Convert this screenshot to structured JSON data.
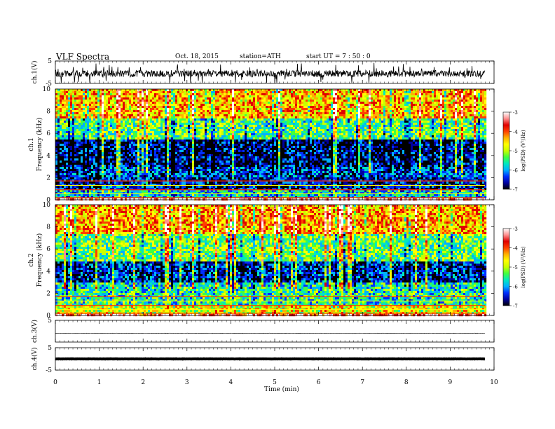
{
  "header": {
    "title": "VLF  Spectra",
    "date": "Oct. 18, 2015",
    "station": "station=ATH",
    "start": "start  UT  =   7 : 50 : 0"
  },
  "colorbar": {
    "ticks": [
      "-3",
      "-4",
      "-5",
      "-6",
      "-7"
    ],
    "label": "log(PSD) (V²/Hz)",
    "colors": [
      "#000000",
      "#0000a0",
      "#0030ff",
      "#00b0ff",
      "#00e8c0",
      "#40ff40",
      "#c8ff00",
      "#ffff00",
      "#ffb000",
      "#ff4000",
      "#e00000",
      "#ff9090",
      "#ffffff"
    ]
  },
  "chart_data": [
    {
      "type": "line",
      "name": "ch1-waveform",
      "ylabel": "ch.1(V)",
      "ylim": [
        -5,
        5
      ],
      "yticks": [
        "5",
        "-5"
      ],
      "xlim": [
        0,
        10
      ],
      "description_values": {
        "baseline": 0,
        "noise_amplitude": 1.5,
        "spike_amplitude": 5
      }
    },
    {
      "type": "heatmap",
      "name": "ch1-spectrogram",
      "side_label": "ch.1",
      "ylabel": "Frequency  (kHz)",
      "ylim": [
        0,
        10
      ],
      "yticks": [
        "0",
        "2",
        "4",
        "6",
        "8",
        "10"
      ],
      "xlim": [
        0,
        9.8
      ],
      "colorscale_range": [
        -7,
        -3
      ],
      "bands": [
        {
          "f": [
            0.0,
            0.3
          ],
          "log_psd": -3.3
        },
        {
          "f": [
            0.3,
            1.0
          ],
          "log_psd": -5.8
        },
        {
          "f": [
            1.0,
            2.2
          ],
          "log_psd": -6.6
        },
        {
          "f": [
            2.2,
            3.0
          ],
          "log_psd": -6.3
        },
        {
          "f": [
            3.0,
            5.5
          ],
          "log_psd": -6.7
        },
        {
          "f": [
            5.5,
            7.5
          ],
          "log_psd": -5.4
        },
        {
          "f": [
            7.5,
            10.0
          ],
          "log_psd": -4.4
        }
      ]
    },
    {
      "type": "heatmap",
      "name": "ch2-spectrogram",
      "side_label": "ch.2",
      "ylabel": "Frequency  (kHz)",
      "ylim": [
        0,
        10
      ],
      "yticks": [
        "0",
        "2",
        "4",
        "6",
        "8",
        "10"
      ],
      "xlim": [
        0,
        9.8
      ],
      "colorscale_range": [
        -7,
        -3
      ],
      "bands": [
        {
          "f": [
            0.0,
            0.3
          ],
          "log_psd": -3.5
        },
        {
          "f": [
            0.3,
            1.0
          ],
          "log_psd": -4.8
        },
        {
          "f": [
            1.0,
            3.0
          ],
          "log_psd": -5.6
        },
        {
          "f": [
            3.0,
            5.0
          ],
          "log_psd": -6.5
        },
        {
          "f": [
            5.0,
            7.5
          ],
          "log_psd": -5.3
        },
        {
          "f": [
            7.5,
            10.0
          ],
          "log_psd": -4.3
        }
      ]
    },
    {
      "type": "line",
      "name": "ch3-waveform",
      "ylabel": "ch.3(V)",
      "ylim": [
        -5,
        5
      ],
      "yticks": [
        "5"
      ],
      "xlim": [
        0,
        9.8
      ],
      "description_values": {
        "baseline": 0,
        "noise_amplitude": 0.1
      }
    },
    {
      "type": "line",
      "name": "ch4-waveform",
      "ylabel": "ch.4(V)",
      "ylim": [
        -5,
        5
      ],
      "yticks": [
        "5",
        "-5"
      ],
      "xlim": [
        0,
        9.8
      ],
      "description_values": {
        "baseline": 0,
        "noise_amplitude": 0.05
      }
    }
  ],
  "xaxis": {
    "label": "Time  (min)",
    "ticks": [
      "0",
      "1",
      "2",
      "3",
      "4",
      "5",
      "6",
      "7",
      "8",
      "9",
      "10"
    ],
    "range": [
      0,
      10
    ]
  }
}
